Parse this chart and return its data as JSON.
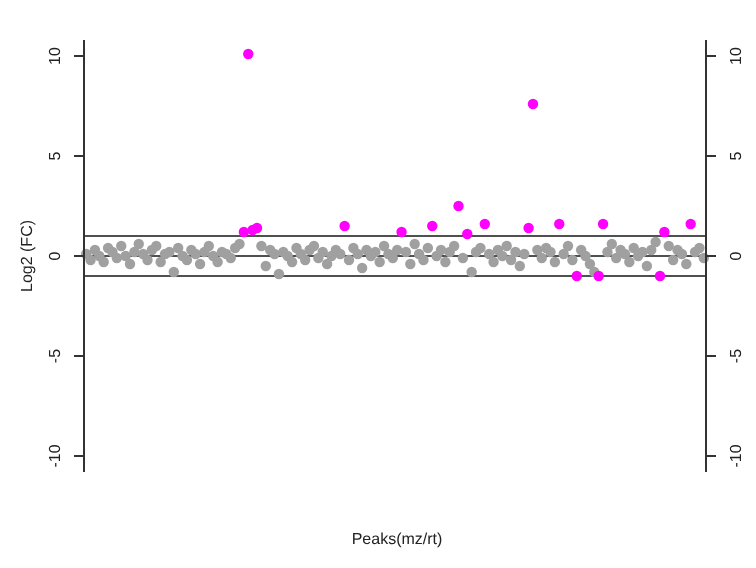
{
  "chart_data": {
    "type": "scatter",
    "xlabel": "Peaks(mz/rt)",
    "ylabel": "Log2 (FC)",
    "marker": "circle",
    "grid": false,
    "ylim": [
      -10.8,
      10.8
    ],
    "yticks": [
      -10,
      -5,
      0,
      5,
      10
    ],
    "y2lim": [
      -10.8,
      10.8
    ],
    "y2ticks": [
      -10,
      -5,
      0,
      5,
      10
    ],
    "ref_lines": [
      {
        "axis": "y",
        "value": 1,
        "color": "#505050"
      },
      {
        "axis": "y",
        "value": 0,
        "color": "#505050"
      },
      {
        "axis": "y",
        "value": -1,
        "color": "#505050"
      }
    ],
    "categories": [
      null,
      null,
      null,
      null,
      null,
      null,
      null,
      null,
      null,
      null,
      null,
      null,
      null,
      null,
      null,
      null,
      null,
      null,
      null,
      null,
      null,
      null,
      null,
      null,
      null,
      null,
      null,
      null,
      null,
      null,
      null,
      null,
      null,
      null,
      null,
      null,
      null,
      null,
      null,
      null,
      null,
      null,
      null,
      null,
      null,
      null,
      null,
      null,
      null,
      null,
      null,
      null,
      null,
      null,
      null,
      null,
      null,
      null,
      null,
      null,
      null,
      null,
      null,
      null,
      null,
      null,
      null,
      null,
      null,
      null,
      null,
      null,
      null,
      null,
      null,
      null,
      null,
      null,
      null,
      null,
      null,
      null,
      null,
      null,
      null,
      null,
      null,
      null,
      null,
      null,
      null,
      null,
      null,
      null,
      null,
      null,
      null,
      null,
      null,
      null,
      null,
      null,
      null,
      null,
      null,
      null,
      null,
      null,
      null,
      null,
      null,
      null,
      null,
      null,
      null,
      null,
      null,
      null,
      null,
      null,
      null,
      null,
      null,
      null,
      null,
      null,
      null,
      null,
      null,
      null,
      null,
      null,
      null,
      null,
      null,
      null,
      null,
      null,
      null,
      null,
      null,
      null
    ],
    "series": [
      {
        "color": "#a0a0a0",
        "values": [
          0.1,
          -0.2,
          0.3,
          0,
          -0.3,
          0.4,
          0.2,
          -0.1,
          0.5,
          0,
          -0.4,
          0.2,
          0.6,
          0.1,
          -0.2,
          0.3,
          0.5,
          -0.3,
          0.1,
          0.2,
          -0.8,
          0.4,
          0,
          -0.2,
          0.3,
          0.1,
          -0.4,
          0.2,
          0.5,
          0,
          -0.3,
          0.2,
          0.1,
          -0.1,
          0.4,
          0.6,
          null,
          null,
          null,
          null,
          0.5,
          -0.5,
          0.3,
          0.1,
          -0.9,
          0.2,
          0,
          -0.3,
          0.4,
          0.1,
          -0.2,
          0.3,
          0.5,
          -0.1,
          0.2,
          -0.4,
          0,
          0.3,
          0.1,
          null,
          -0.2,
          0.4,
          0.1,
          -0.6,
          0.3,
          0,
          0.2,
          -0.3,
          0.5,
          0.1,
          -0.1,
          0.3,
          null,
          0.2,
          -0.4,
          0.6,
          0.1,
          -0.2,
          0.4,
          null,
          0,
          0.3,
          -0.3,
          0.2,
          0.5,
          null,
          -0.1,
          null,
          -0.8,
          0.2,
          0.4,
          null,
          0.1,
          -0.3,
          0.3,
          0,
          0.5,
          -0.2,
          0.2,
          -0.5,
          0.1,
          null,
          null,
          0.3,
          -0.1,
          0.4,
          0.2,
          -0.3,
          null,
          0.1,
          0.5,
          -0.2,
          null,
          0.3,
          0,
          -0.4,
          -0.8,
          null,
          null,
          0.2,
          0.6,
          -0.1,
          0.3,
          0.1,
          -0.3,
          0.4,
          0,
          0.2,
          -0.5,
          0.3,
          0.7,
          null,
          null,
          0.5,
          -0.2,
          0.3,
          0.1,
          -0.4,
          null,
          0.2,
          0.4,
          -0.1
        ]
      },
      {
        "color": "#ff00ff",
        "values": [
          null,
          null,
          null,
          null,
          null,
          null,
          null,
          null,
          null,
          null,
          null,
          null,
          null,
          null,
          null,
          null,
          null,
          null,
          null,
          null,
          null,
          null,
          null,
          null,
          null,
          null,
          null,
          null,
          null,
          null,
          null,
          null,
          null,
          null,
          null,
          null,
          1.2,
          10.1,
          1.3,
          1.4,
          null,
          null,
          null,
          null,
          null,
          null,
          null,
          null,
          null,
          null,
          null,
          null,
          null,
          null,
          null,
          null,
          null,
          null,
          null,
          1.5,
          null,
          null,
          null,
          null,
          null,
          null,
          null,
          null,
          null,
          null,
          null,
          null,
          1.2,
          null,
          null,
          null,
          null,
          null,
          null,
          1.5,
          null,
          null,
          null,
          null,
          null,
          2.5,
          null,
          1.1,
          null,
          null,
          null,
          1.6,
          null,
          null,
          null,
          null,
          null,
          null,
          null,
          null,
          null,
          1.4,
          7.6,
          null,
          null,
          null,
          null,
          null,
          1.6,
          null,
          null,
          null,
          -1.0,
          null,
          null,
          null,
          null,
          -1.0,
          1.6,
          null,
          null,
          null,
          null,
          null,
          null,
          null,
          null,
          null,
          null,
          null,
          null,
          -1.0,
          1.2,
          null,
          null,
          null,
          null,
          null,
          1.6,
          null,
          null,
          null
        ]
      }
    ]
  }
}
